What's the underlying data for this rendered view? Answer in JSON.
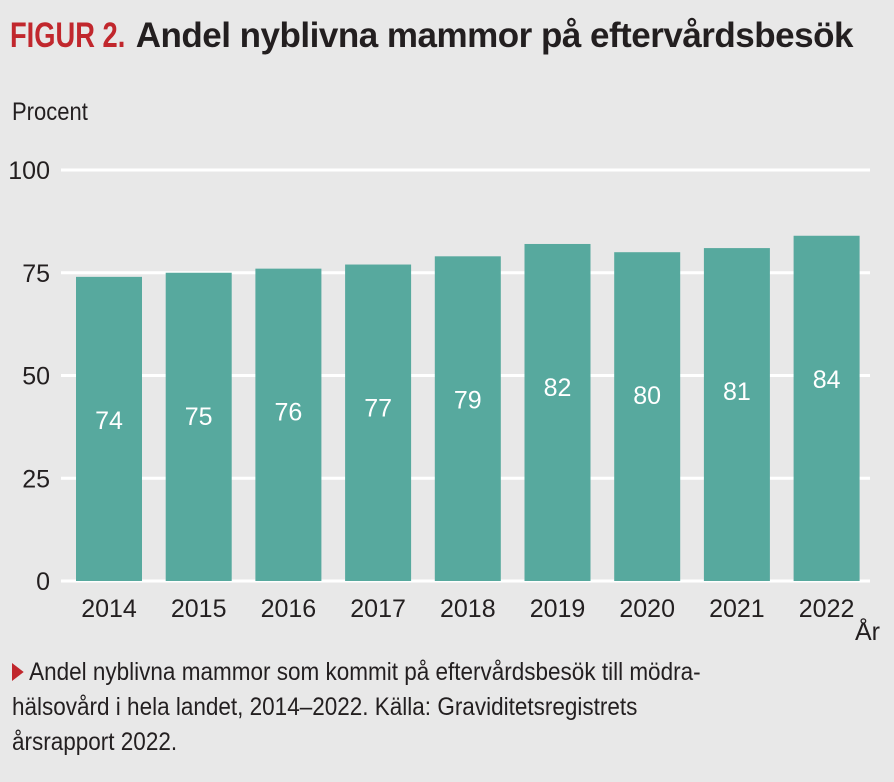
{
  "header": {
    "figure_label": "FIGUR 2.",
    "title": "Andel nyblivna mammor på eftervårdsbesök"
  },
  "caption": {
    "marker_icon": "red-triangle-right",
    "lines": [
      "Andel nyblivna mammor som kommit på eftervårdsbesök till mödra-",
      "hälsovård i hela landet, 2014–2022. Källa: Graviditetsregistrets",
      "årsrapport 2022."
    ]
  },
  "colors": {
    "bar": "#57a99e",
    "accent": "#c1272d",
    "background": "#e8e8e8",
    "gridline": "#ffffff",
    "text": "#231f20"
  },
  "chart_data": {
    "type": "bar",
    "title": "Andel nyblivna mammor på eftervårdsbesök",
    "ylabel": "Procent",
    "xlabel": "År",
    "categories": [
      "2014",
      "2015",
      "2016",
      "2017",
      "2018",
      "2019",
      "2020",
      "2021",
      "2022"
    ],
    "values": [
      74,
      75,
      76,
      77,
      79,
      82,
      80,
      81,
      84
    ],
    "data_labels": [
      "74",
      "75",
      "76",
      "77",
      "79",
      "82",
      "80",
      "81",
      "84"
    ],
    "ylim": [
      0,
      100
    ],
    "yticks": [
      0,
      25,
      50,
      75,
      100
    ],
    "ytick_labels": [
      "0",
      "25",
      "50",
      "75",
      "100"
    ],
    "grid": true,
    "legend": "none"
  }
}
